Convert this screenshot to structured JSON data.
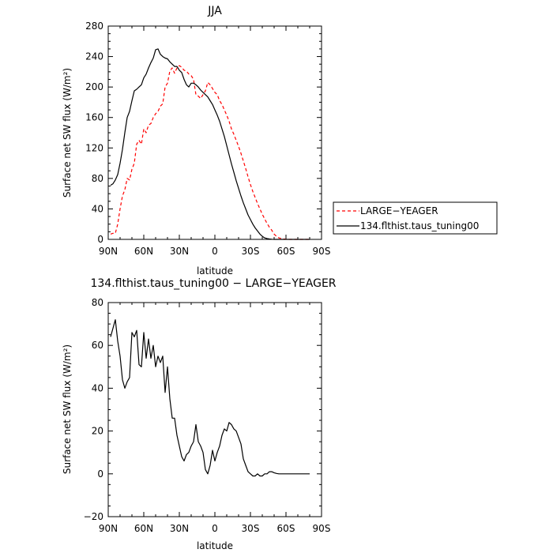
{
  "chart_data": [
    {
      "type": "line",
      "title": "JJA",
      "xlabel": "latitude",
      "ylabel": "Surface net SW flux (W/m²)",
      "xlim": [
        90,
        -90
      ],
      "ylim": [
        0,
        280
      ],
      "x_ticks": [
        90,
        60,
        30,
        0,
        -30,
        -60,
        -90
      ],
      "x_tick_labels": [
        "90N",
        "60N",
        "30N",
        "0",
        "30S",
        "60S",
        "90S"
      ],
      "y_ticks": [
        0,
        40,
        80,
        120,
        160,
        200,
        240,
        280
      ],
      "y_tick_labels": [
        "0",
        "40",
        "80",
        "120",
        "160",
        "200",
        "240",
        "280"
      ],
      "legend_position": "right",
      "series": [
        {
          "name": "LARGE−YEAGER",
          "color": "#ff0000",
          "dash": "dashed",
          "x": [
            88,
            86,
            84,
            82,
            80,
            78,
            76,
            74,
            72,
            70,
            68,
            66,
            64,
            62,
            60,
            58,
            56,
            54,
            52,
            50,
            48,
            46,
            44,
            42,
            40,
            38,
            36,
            34,
            32,
            30,
            28,
            26,
            24,
            22,
            20,
            18,
            16,
            14,
            12,
            10,
            8,
            6,
            4,
            2,
            0,
            -2,
            -4,
            -6,
            -8,
            -10,
            -12,
            -14,
            -16,
            -18,
            -20,
            -22,
            -24,
            -26,
            -28,
            -30,
            -32,
            -34,
            -36,
            -38,
            -40,
            -42,
            -44,
            -46,
            -48,
            -50,
            -52,
            -54,
            -56,
            -58,
            -60,
            -62,
            -64,
            -66,
            -68,
            -70,
            -72,
            -74,
            -76,
            -78,
            -80
          ],
          "values": [
            7,
            8,
            8,
            20,
            40,
            57,
            65,
            80,
            78,
            92,
            100,
            125,
            130,
            125,
            145,
            140,
            150,
            152,
            160,
            165,
            168,
            175,
            178,
            200,
            205,
            221,
            225,
            218,
            225,
            228,
            226,
            222,
            221,
            217,
            215,
            210,
            190,
            188,
            185,
            190,
            195,
            206,
            203,
            198,
            193,
            190,
            182,
            177,
            170,
            163,
            155,
            145,
            138,
            130,
            122,
            113,
            103,
            93,
            82,
            72,
            63,
            55,
            47,
            40,
            33,
            27,
            21,
            16,
            12,
            7,
            4,
            2,
            1,
            0.5,
            0.2,
            0,
            0,
            0,
            0,
            0,
            0,
            0,
            0,
            0,
            0
          ]
        },
        {
          "name": "134.flthist.taus_tuning00",
          "color": "#000000",
          "dash": "solid",
          "x": [
            88,
            86,
            84,
            82,
            80,
            78,
            76,
            74,
            72,
            70,
            68,
            66,
            64,
            62,
            60,
            58,
            56,
            54,
            52,
            50,
            48,
            46,
            44,
            42,
            40,
            38,
            36,
            34,
            32,
            30,
            28,
            26,
            24,
            22,
            20,
            18,
            16,
            14,
            12,
            10,
            8,
            6,
            4,
            2,
            0,
            -2,
            -4,
            -6,
            -8,
            -10,
            -12,
            -14,
            -16,
            -18,
            -20,
            -22,
            -24,
            -26,
            -28,
            -30,
            -32,
            -34,
            -36,
            -38,
            -40,
            -42,
            -44,
            -46,
            -48,
            -50,
            -52,
            -54,
            -56,
            -58,
            -60,
            -62,
            -64,
            -66,
            -68,
            -70,
            -72,
            -74,
            -76,
            -78,
            -80
          ],
          "values": [
            71,
            73,
            78,
            85,
            100,
            118,
            140,
            160,
            168,
            182,
            195,
            197,
            200,
            203,
            212,
            217,
            225,
            232,
            238,
            249,
            250,
            243,
            240,
            238,
            237,
            233,
            230,
            227,
            227,
            222,
            219,
            210,
            203,
            200,
            205,
            205,
            203,
            200,
            196,
            193,
            190,
            187,
            182,
            177,
            170,
            163,
            155,
            145,
            135,
            123,
            111,
            99,
            88,
            77,
            67,
            57,
            48,
            40,
            32,
            26,
            20,
            15,
            11,
            7,
            4,
            2,
            1,
            0.5,
            0.2,
            0,
            0,
            0,
            0,
            0,
            0,
            0,
            0,
            0,
            0,
            0,
            0,
            0,
            0,
            0,
            0
          ]
        }
      ]
    },
    {
      "type": "line",
      "title": "134.flthist.taus_tuning00 − LARGE−YEAGER",
      "xlabel": "latitude",
      "ylabel": "Surface net SW flux (W/m²)",
      "xlim": [
        90,
        -90
      ],
      "ylim": [
        -20,
        80
      ],
      "x_ticks": [
        90,
        60,
        30,
        0,
        -30,
        -60,
        -90
      ],
      "x_tick_labels": [
        "90N",
        "60N",
        "30N",
        "0",
        "30S",
        "60S",
        "90S"
      ],
      "y_ticks": [
        -20,
        0,
        20,
        40,
        60,
        80
      ],
      "y_tick_labels": [
        "−20",
        "0",
        "20",
        "40",
        "60",
        "80"
      ],
      "series": [
        {
          "color": "#000000",
          "x": [
            88,
            86,
            84,
            82,
            80,
            78,
            76,
            74,
            72,
            70,
            68,
            66,
            64,
            62,
            60,
            58,
            56,
            54,
            52,
            50,
            48,
            46,
            44,
            42,
            40,
            38,
            36,
            34,
            32,
            30,
            28,
            26,
            24,
            22,
            20,
            18,
            16,
            14,
            12,
            10,
            8,
            6,
            4,
            2,
            0,
            -2,
            -4,
            -6,
            -8,
            -10,
            -12,
            -14,
            -16,
            -18,
            -20,
            -22,
            -24,
            -26,
            -28,
            -30,
            -32,
            -34,
            -36,
            -38,
            -40,
            -42,
            -44,
            -46,
            -48,
            -50,
            -52,
            -54,
            -56,
            -58,
            -60,
            -62,
            -64,
            -66,
            -68,
            -70,
            -72,
            -74,
            -76,
            -78,
            -80
          ],
          "values": [
            64,
            68,
            72,
            62,
            55,
            44,
            40,
            43,
            45,
            66,
            64,
            67,
            51,
            50,
            66,
            54,
            63,
            54,
            60,
            50,
            55,
            52,
            55,
            38,
            50,
            35,
            26,
            26,
            18,
            13,
            8,
            6,
            9,
            10,
            13,
            15,
            23,
            15,
            13,
            10,
            2,
            0,
            4,
            11,
            6,
            10,
            13,
            18,
            21,
            20,
            24,
            23,
            21,
            20,
            17,
            14,
            7,
            4,
            1,
            0,
            -1,
            -1,
            0,
            -1,
            -1,
            0,
            0,
            1,
            1,
            0.5,
            0.2,
            0,
            0,
            0,
            0,
            0,
            0,
            0,
            0,
            0,
            0,
            0,
            0,
            0,
            0
          ]
        }
      ]
    }
  ]
}
